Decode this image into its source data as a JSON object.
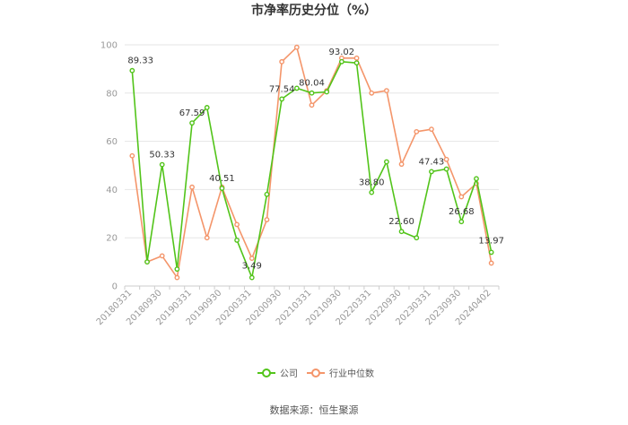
{
  "source_label": "数据来源：恒生聚源",
  "colors": {
    "company": "#52c41a",
    "industry": "#f4956a",
    "grid": "#e6e6e6",
    "axis": "#cccccc"
  },
  "chart_data": {
    "type": "line",
    "title": "市净率历史分位（%）",
    "x": [
      "20180331",
      "20180630",
      "20180930",
      "20181231",
      "20190331",
      "20190630",
      "20190930",
      "20191231",
      "20200331",
      "20200630",
      "20200930",
      "20201231",
      "20210331",
      "20210630",
      "20210930",
      "20211231",
      "20220331",
      "20220630",
      "20220930",
      "20221231",
      "20230331",
      "20230630",
      "20230930",
      "20231231",
      "20240402"
    ],
    "x_tick_labels": [
      "20180331",
      "20180930",
      "20190331",
      "20190930",
      "20200331",
      "20200930",
      "20210331",
      "20210930",
      "20220331",
      "20220930",
      "20230331",
      "20230930",
      "20240402"
    ],
    "ylim": [
      0,
      100
    ],
    "yticks": [
      0,
      20,
      40,
      60,
      80,
      100
    ],
    "grid": true,
    "legend_position": "bottom",
    "series": [
      {
        "name": "公司",
        "values": [
          89.33,
          10,
          50.33,
          7,
          67.59,
          74,
          40.51,
          19,
          3.49,
          38,
          77.54,
          82,
          80.04,
          80.5,
          93.02,
          92.5,
          38.8,
          51.5,
          22.6,
          20,
          47.43,
          48.5,
          26.68,
          44.5,
          13.97
        ]
      },
      {
        "name": "行业中位数",
        "values": [
          54,
          10,
          12.5,
          3.5,
          41,
          20,
          41,
          25.5,
          11.5,
          27.5,
          93,
          99,
          75,
          81,
          94.5,
          94.5,
          80,
          81,
          50.5,
          64,
          65,
          52.5,
          37,
          42.5,
          9.5
        ]
      }
    ],
    "data_labels": [
      {
        "index": 0,
        "text": "89.33"
      },
      {
        "index": 2,
        "text": "50.33"
      },
      {
        "index": 4,
        "text": "67.59"
      },
      {
        "index": 6,
        "text": "40.51"
      },
      {
        "index": 8,
        "text": "3.49"
      },
      {
        "index": 10,
        "text": "77.54"
      },
      {
        "index": 12,
        "text": "80.04"
      },
      {
        "index": 14,
        "text": "93.02"
      },
      {
        "index": 16,
        "text": "38.80"
      },
      {
        "index": 18,
        "text": "22.60"
      },
      {
        "index": 20,
        "text": "47.43"
      },
      {
        "index": 22,
        "text": "26.68"
      },
      {
        "index": 24,
        "text": "13.97"
      }
    ]
  }
}
